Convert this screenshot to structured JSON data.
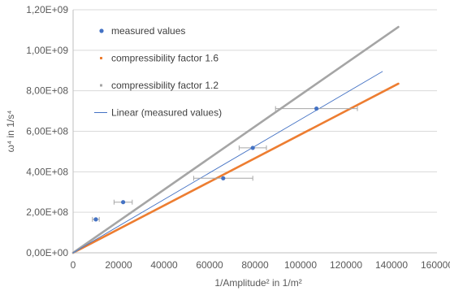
{
  "chart_data": {
    "type": "scatter",
    "title": "",
    "xlabel": "1/Amplitude² in 1/m²",
    "ylabel": "ω⁴ in 1/s⁴",
    "xlim": [
      0,
      160000
    ],
    "ylim": [
      0,
      1200000000
    ],
    "x_ticks": [
      "0",
      "20000",
      "40000",
      "60000",
      "80000",
      "100000",
      "120000",
      "140000",
      "160000"
    ],
    "y_ticks": [
      "0,00E+00",
      "2,00E+08",
      "4,00E+08",
      "6,00E+08",
      "8,00E+08",
      "1,00E+09",
      "1,20E+09"
    ],
    "grid": "horizontal",
    "legend_position": "top-left",
    "series": [
      {
        "name": "measured values",
        "kind": "points",
        "color": "#4472C4",
        "points": [
          {
            "x": 10000,
            "y": 165000000,
            "xerr": 1500
          },
          {
            "x": 22000,
            "y": 250000000,
            "xerr": 4000
          },
          {
            "x": 66000,
            "y": 368000000,
            "xerr": 13000
          },
          {
            "x": 79000,
            "y": 518000000,
            "xerr": 6000
          },
          {
            "x": 107000,
            "y": 712000000,
            "xerr": 18000
          }
        ]
      },
      {
        "name": "compressibility factor 1.6",
        "kind": "line",
        "color": "#ED7D31",
        "points": [
          {
            "x": 0,
            "y": 0
          },
          {
            "x": 143000,
            "y": 835000000
          }
        ]
      },
      {
        "name": "compressibility factor 1.2",
        "kind": "line",
        "color": "#A5A5A5",
        "points": [
          {
            "x": 0,
            "y": 0
          },
          {
            "x": 143000,
            "y": 1115000000
          }
        ]
      },
      {
        "name": "Linear (measured values)",
        "kind": "trendline",
        "color": "#4472C4",
        "points": [
          {
            "x": 0,
            "y": 0
          },
          {
            "x": 136000,
            "y": 895000000
          }
        ]
      }
    ]
  }
}
